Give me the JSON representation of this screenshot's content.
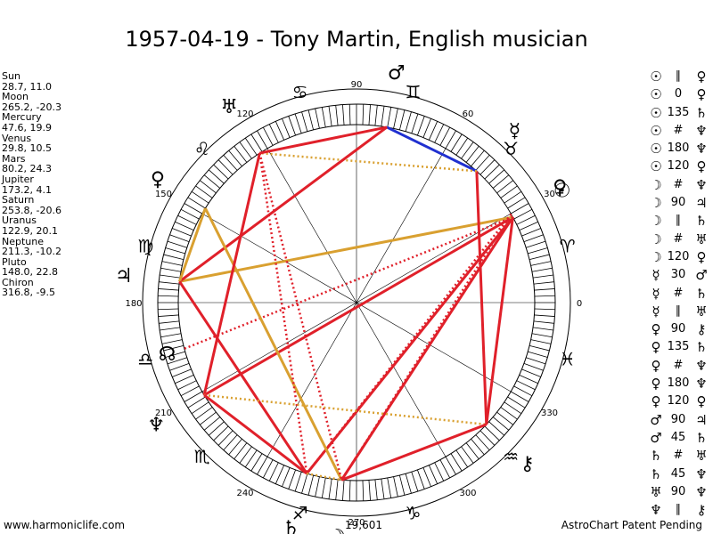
{
  "title": "1957-04-19 - Tony Martin, English musician",
  "footer_left": "www.harmoniclife.com",
  "footer_right": "AstroChart Patent Pending",
  "bottom_label": "19,601",
  "planet_positions": [
    {
      "name": "Sun",
      "coords": "28.7, 11.0"
    },
    {
      "name": "Moon",
      "coords": "265.2, -20.3"
    },
    {
      "name": "Mercury",
      "coords": "47.6, 19.9"
    },
    {
      "name": "Venus",
      "coords": "29.8, 10.5"
    },
    {
      "name": "Mars",
      "coords": "80.2, 24.3"
    },
    {
      "name": "Jupiter",
      "coords": "173.2, 4.1"
    },
    {
      "name": "Saturn",
      "coords": "253.8, -20.6"
    },
    {
      "name": "Uranus",
      "coords": "122.9, 20.1"
    },
    {
      "name": "Neptune",
      "coords": "211.3, -10.2"
    },
    {
      "name": "Pluto",
      "coords": "148.0, 22.8"
    },
    {
      "name": "Chiron",
      "coords": "316.8, -9.5"
    }
  ],
  "aspect_list": [
    {
      "p1": "☉",
      "aspect": "∥",
      "p2": "♀"
    },
    {
      "p1": "☉",
      "aspect": "0",
      "p2": "♀"
    },
    {
      "p1": "☉",
      "aspect": "135",
      "p2": "♄"
    },
    {
      "p1": "☉",
      "aspect": "#",
      "p2": "♆"
    },
    {
      "p1": "☉",
      "aspect": "180",
      "p2": "♆"
    },
    {
      "p1": "☉",
      "aspect": "120",
      "p2": "♀"
    },
    {
      "p1": "☽",
      "aspect": "#",
      "p2": "♆"
    },
    {
      "p1": "☽",
      "aspect": "90",
      "p2": "♃"
    },
    {
      "p1": "☽",
      "aspect": "∥",
      "p2": "♄"
    },
    {
      "p1": "☽",
      "aspect": "#",
      "p2": "♅"
    },
    {
      "p1": "☽",
      "aspect": "120",
      "p2": "♀"
    },
    {
      "p1": "☿",
      "aspect": "30",
      "p2": "♂"
    },
    {
      "p1": "☿",
      "aspect": "#",
      "p2": "♄"
    },
    {
      "p1": "☿",
      "aspect": "∥",
      "p2": "♅"
    },
    {
      "p1": "♀",
      "aspect": "90",
      "p2": "⚷"
    },
    {
      "p1": "♀",
      "aspect": "135",
      "p2": "♄"
    },
    {
      "p1": "♀",
      "aspect": "#",
      "p2": "♆"
    },
    {
      "p1": "♀",
      "aspect": "180",
      "p2": "♆"
    },
    {
      "p1": "♀",
      "aspect": "120",
      "p2": "♀"
    },
    {
      "p1": "♂",
      "aspect": "90",
      "p2": "♃"
    },
    {
      "p1": "♂",
      "aspect": "45",
      "p2": "♄"
    },
    {
      "p1": "♄",
      "aspect": "#",
      "p2": "♅"
    },
    {
      "p1": "♄",
      "aspect": "45",
      "p2": "♆"
    },
    {
      "p1": "♅",
      "aspect": "90",
      "p2": "♆"
    },
    {
      "p1": "♆",
      "aspect": "∥",
      "p2": "⚷"
    }
  ],
  "chart_data": {
    "type": "astrological-wheel",
    "title": "1957-04-19 - Tony Martin, English musician",
    "degree_labels": [
      "0",
      "30",
      "60",
      "90",
      "120",
      "150",
      "180",
      "210",
      "240",
      "270",
      "300",
      "330"
    ],
    "zodiac_signs": [
      {
        "glyph": "♈",
        "lon": 15
      },
      {
        "glyph": "♉",
        "lon": 45
      },
      {
        "glyph": "♊",
        "lon": 75
      },
      {
        "glyph": "♋",
        "lon": 105
      },
      {
        "glyph": "♌",
        "lon": 135
      },
      {
        "glyph": "♍",
        "lon": 165
      },
      {
        "glyph": "♎",
        "lon": 195
      },
      {
        "glyph": "♏",
        "lon": 225
      },
      {
        "glyph": "♐",
        "lon": 255
      },
      {
        "glyph": "♑",
        "lon": 285
      },
      {
        "glyph": "♒",
        "lon": 315
      },
      {
        "glyph": "♓",
        "lon": 345
      }
    ],
    "planets": [
      {
        "key": "sun",
        "glyph": "☉",
        "lon": 28.7
      },
      {
        "key": "moon",
        "glyph": "☽",
        "lon": 265.2
      },
      {
        "key": "mercury",
        "glyph": "☿",
        "lon": 47.6
      },
      {
        "key": "venus",
        "glyph": "♀",
        "lon": 29.8
      },
      {
        "key": "mars",
        "glyph": "♂",
        "lon": 80.2
      },
      {
        "key": "jupiter",
        "glyph": "♃",
        "lon": 173.2
      },
      {
        "key": "saturn",
        "glyph": "♄",
        "lon": 253.8
      },
      {
        "key": "uranus",
        "glyph": "♅",
        "lon": 122.9
      },
      {
        "key": "neptune",
        "glyph": "♆",
        "lon": 211.3
      },
      {
        "key": "pluto",
        "glyph": "♀",
        "lon": 148.0
      },
      {
        "key": "chiron",
        "glyph": "⚷",
        "lon": 316.8
      },
      {
        "key": "node",
        "glyph": "☊",
        "lon": 195
      }
    ],
    "aspect_lines": [
      {
        "from": "sun",
        "to": "moon",
        "color": "#e0202a",
        "style": "solid"
      },
      {
        "from": "sun",
        "to": "saturn",
        "color": "#e0202a",
        "style": "solid"
      },
      {
        "from": "sun",
        "to": "neptune",
        "color": "#e0202a",
        "style": "solid"
      },
      {
        "from": "sun",
        "to": "jupiter",
        "color": "#d9a030",
        "style": "solid"
      },
      {
        "from": "sun",
        "to": "chiron",
        "color": "#e0202a",
        "style": "solid"
      },
      {
        "from": "sun",
        "to": "node",
        "color": "#e0202a",
        "style": "dotted"
      },
      {
        "from": "venus",
        "to": "moon",
        "color": "#e0202a",
        "style": "dotted"
      },
      {
        "from": "venus",
        "to": "saturn",
        "color": "#e0202a",
        "style": "dotted"
      },
      {
        "from": "mercury",
        "to": "mars",
        "color": "#2030d0",
        "style": "solid"
      },
      {
        "from": "mercury",
        "to": "chiron",
        "color": "#e0202a",
        "style": "solid"
      },
      {
        "from": "mercury",
        "to": "uranus",
        "color": "#d9a030",
        "style": "dotted"
      },
      {
        "from": "mars",
        "to": "uranus",
        "color": "#e0202a",
        "style": "solid"
      },
      {
        "from": "mars",
        "to": "jupiter",
        "color": "#e0202a",
        "style": "solid"
      },
      {
        "from": "jupiter",
        "to": "pluto",
        "color": "#d9a030",
        "style": "solid"
      },
      {
        "from": "jupiter",
        "to": "saturn",
        "color": "#e0202a",
        "style": "solid"
      },
      {
        "from": "pluto",
        "to": "moon",
        "color": "#d9a030",
        "style": "solid"
      },
      {
        "from": "uranus",
        "to": "neptune",
        "color": "#e0202a",
        "style": "solid"
      },
      {
        "from": "uranus",
        "to": "moon",
        "color": "#e0202a",
        "style": "dotted"
      },
      {
        "from": "uranus",
        "to": "saturn",
        "color": "#e0202a",
        "style": "dotted"
      },
      {
        "from": "neptune",
        "to": "chiron",
        "color": "#d9a030",
        "style": "dotted"
      },
      {
        "from": "neptune",
        "to": "saturn",
        "color": "#e0202a",
        "style": "solid"
      },
      {
        "from": "saturn",
        "to": "moon",
        "color": "#d9a030",
        "style": "dotted"
      },
      {
        "from": "chiron",
        "to": "moon",
        "color": "#e0202a",
        "style": "solid"
      }
    ]
  }
}
